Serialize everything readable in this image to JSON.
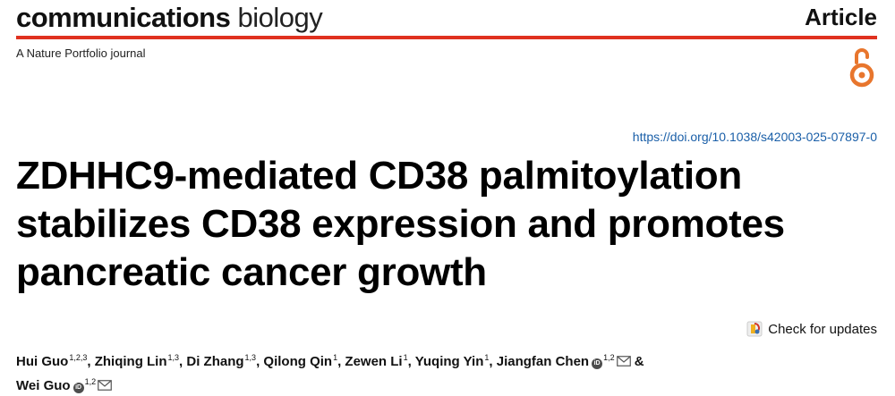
{
  "header": {
    "journal_bold": "communications",
    "journal_light": "biology",
    "article_type": "Article",
    "portfolio": "A Nature Portfolio journal"
  },
  "doi": "https://doi.org/10.1038/s42003-025-07897-0",
  "title": {
    "line1": "ZDHHC9-mediated CD38 palmitoylation",
    "line2": "stabilizes CD38 expression and promotes",
    "line3": "pancreatic cancer growth"
  },
  "check_updates_label": "Check for updates",
  "authors": [
    {
      "name": "Hui Guo",
      "aff": "1,2,3"
    },
    {
      "name": "Zhiqing Lin",
      "aff": "1,3"
    },
    {
      "name": "Di Zhang",
      "aff": "1,3"
    },
    {
      "name": "Qilong Qin",
      "aff": "1"
    },
    {
      "name": "Zewen Li",
      "aff": "1"
    },
    {
      "name": "Yuqing Yin",
      "aff": "1"
    },
    {
      "name": "Jiangfan Chen",
      "aff": "1,2"
    },
    {
      "name": "Wei Guo",
      "aff": "1,2"
    }
  ],
  "ampersand": "&",
  "colors": {
    "accent_rule": "#e0311f",
    "open_access_icon": "#e8762d",
    "doi_link": "#1a5fa8"
  }
}
